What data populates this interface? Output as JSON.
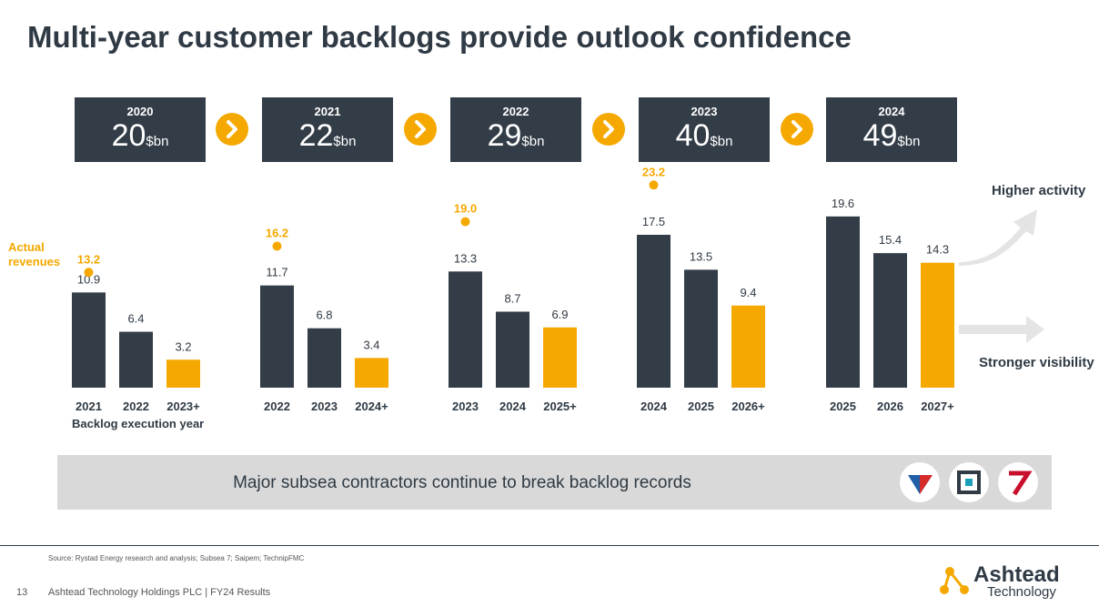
{
  "title": "Multi-year customer backlogs provide outlook confidence",
  "unit": "$bn",
  "backlogs": [
    {
      "year": "2020",
      "value": "20"
    },
    {
      "year": "2021",
      "value": "22"
    },
    {
      "year": "2022",
      "value": "29"
    },
    {
      "year": "2023",
      "value": "40"
    },
    {
      "year": "2024",
      "value": "49"
    }
  ],
  "labels": {
    "actual_revenues": "Actual revenues",
    "execution_year": "Backlog execution year",
    "higher_activity": "Higher activity",
    "stronger_visibility": "Stronger visibility"
  },
  "banner": {
    "text": "Major subsea contractors continue to break backlog records"
  },
  "footer": {
    "source": "Source: Rystad Energy research and analysis; Subsea 7; Saipem; TechnipFMC",
    "page": "13",
    "text": "Ashtead Technology Holdings PLC | FY24 Results",
    "brand_name": "Ashtead",
    "brand_sub": "Technology"
  },
  "colors": {
    "dark": "#333d47",
    "accent": "#f5a800",
    "muted": "#bfbfbf"
  },
  "chart_data": [
    {
      "type": "bar",
      "title": "2020 backlog",
      "categories": [
        "2021",
        "2022",
        "2023+"
      ],
      "values": [
        10.9,
        6.4,
        3.2
      ],
      "actual_revenue": 13.2
    },
    {
      "type": "bar",
      "title": "2021 backlog",
      "categories": [
        "2022",
        "2023",
        "2024+"
      ],
      "values": [
        11.7,
        6.8,
        3.4
      ],
      "actual_revenue": 16.2
    },
    {
      "type": "bar",
      "title": "2022 backlog",
      "categories": [
        "2023",
        "2024",
        "2025+"
      ],
      "values": [
        13.3,
        8.7,
        6.9
      ],
      "actual_revenue": 19.0
    },
    {
      "type": "bar",
      "title": "2023 backlog",
      "categories": [
        "2024",
        "2025",
        "2026+"
      ],
      "values": [
        17.5,
        13.5,
        9.4
      ],
      "actual_revenue": 23.2
    },
    {
      "type": "bar",
      "title": "2024 backlog",
      "categories": [
        "2025",
        "2026",
        "2027+"
      ],
      "values": [
        19.6,
        15.4,
        14.3
      ],
      "actual_revenue": null
    }
  ]
}
